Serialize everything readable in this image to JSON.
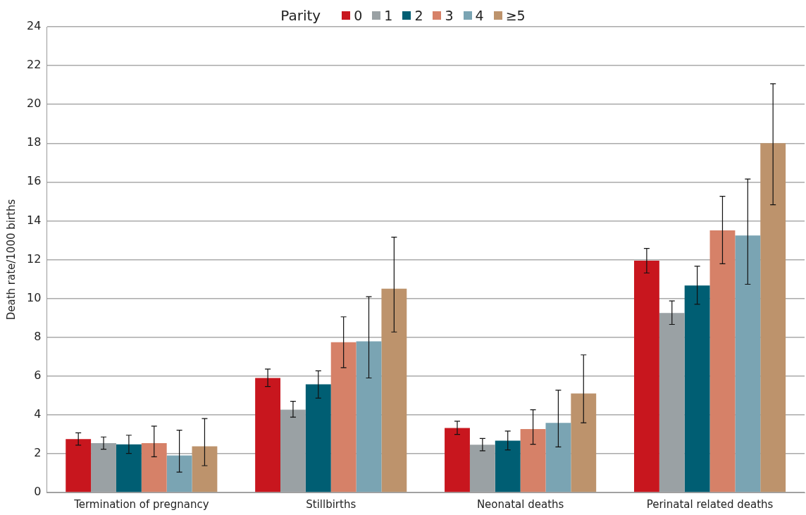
{
  "chart_data": {
    "type": "bar",
    "ylabel": "Death rate/1000 births",
    "legend_title": "Parity",
    "legend": "top",
    "grid": "y",
    "categories": [
      "Termination of pregnancy",
      "Stillbirths",
      "Neonatal deaths",
      "Perinatal related deaths"
    ],
    "ylim": [
      0,
      24
    ],
    "yticks": [
      0,
      2,
      4,
      6,
      8,
      10,
      12,
      14,
      16,
      18,
      20,
      22,
      24
    ],
    "series": [
      {
        "name": "0",
        "color": "#c8161e",
        "values": [
          2.75,
          5.9,
          3.32,
          11.95
        ],
        "errors": [
          [
            2.44,
            3.07
          ],
          [
            5.46,
            6.36
          ],
          [
            2.99,
            3.67
          ],
          [
            11.31,
            12.58
          ]
        ]
      },
      {
        "name": "1",
        "color": "#9aa1a4",
        "values": [
          2.54,
          4.27,
          2.46,
          9.25
        ],
        "errors": [
          [
            2.23,
            2.86
          ],
          [
            3.88,
            4.7
          ],
          [
            2.15,
            2.78
          ],
          [
            8.66,
            9.87
          ]
        ]
      },
      {
        "name": "2",
        "color": "#005e73",
        "values": [
          2.48,
          5.57,
          2.67,
          10.67
        ],
        "errors": [
          [
            2.01,
            2.95
          ],
          [
            4.86,
            6.27
          ],
          [
            2.19,
            3.16
          ],
          [
            9.7,
            11.66
          ]
        ]
      },
      {
        "name": "3",
        "color": "#d68168",
        "values": [
          2.54,
          7.74,
          3.27,
          13.51
        ],
        "errors": [
          [
            1.84,
            3.42
          ],
          [
            6.43,
            9.05
          ],
          [
            2.48,
            4.26
          ],
          [
            11.79,
            15.26
          ]
        ]
      },
      {
        "name": "4",
        "color": "#7aa4b3",
        "values": [
          1.91,
          7.79,
          3.59,
          13.24
        ],
        "errors": [
          [
            1.05,
            3.21
          ],
          [
            5.9,
            10.09
          ],
          [
            2.35,
            5.27
          ],
          [
            10.73,
            16.15
          ]
        ]
      },
      {
        "name": "≥5",
        "color": "#bd936c",
        "values": [
          2.38,
          10.5,
          5.1,
          18
        ],
        "errors": [
          [
            1.38,
            3.81
          ],
          [
            8.27,
            13.16
          ],
          [
            3.59,
            7.09
          ],
          [
            14.83,
            21.06
          ]
        ]
      }
    ]
  }
}
